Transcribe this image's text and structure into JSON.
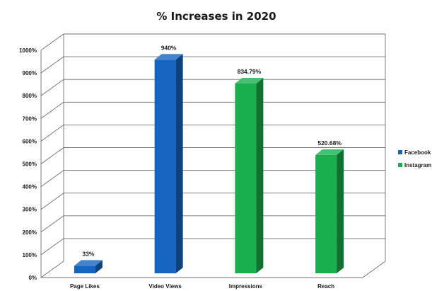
{
  "chart_data": {
    "type": "bar",
    "title": "% Increases in 2020",
    "xlabel": "",
    "ylabel": "",
    "categories": [
      "Page Likes",
      "Video Views",
      "Impressions",
      "Reach"
    ],
    "bars": [
      {
        "category": "Page Likes",
        "series": "Facebook",
        "value": 33,
        "label": "33%"
      },
      {
        "category": "Video Views",
        "series": "Facebook",
        "value": 940,
        "label": "940%"
      },
      {
        "category": "Impressions",
        "series": "Instagram",
        "value": 834.79,
        "label": "834.79%"
      },
      {
        "category": "Reach",
        "series": "Instagram",
        "value": 520.68,
        "label": "520.68%"
      }
    ],
    "series": [
      {
        "name": "Facebook",
        "color": "#1565c0",
        "values": [
          33,
          940,
          null,
          null
        ]
      },
      {
        "name": "Instagram",
        "color": "#1aae4e",
        "values": [
          null,
          null,
          834.79,
          520.68
        ]
      }
    ],
    "ylim": [
      0,
      1000
    ],
    "yticks": [
      0,
      100,
      200,
      300,
      400,
      500,
      600,
      700,
      800,
      900,
      1000
    ],
    "ytick_labels": [
      "0%",
      "100%",
      "200%",
      "300%",
      "400%",
      "500%",
      "600%",
      "700%",
      "800%",
      "900%",
      "1000%"
    ],
    "grid": true,
    "legend_position": "right"
  }
}
